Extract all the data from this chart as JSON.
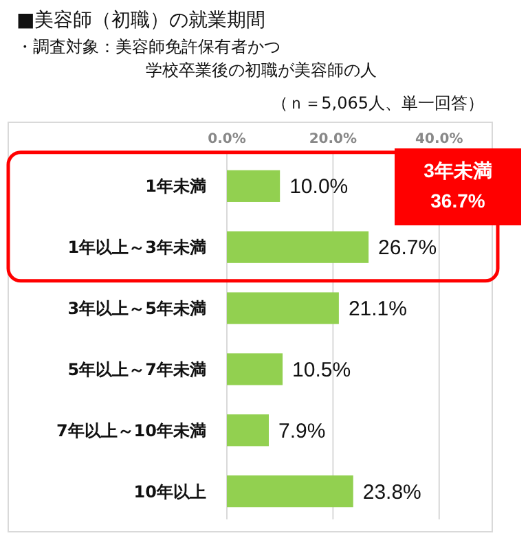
{
  "chart_data": {
    "type": "bar",
    "orientation": "horizontal",
    "title": "■美容師（初職）の就業期間",
    "subtitle": "・調査対象：美容師免許保有者かつ",
    "annotations": [
      "学校卒業後の初職が美容師の人",
      "（ｎ＝5,065人、単一回答）",
      "3年未満\n36.7%"
    ],
    "categories": [
      "1年未満",
      "1年以上～3年未満",
      "3年以上～5年未満",
      "5年以上～7年未満",
      "7年以上～10年未満",
      "10年以上"
    ],
    "values": [
      10.0,
      26.7,
      21.1,
      10.5,
      7.9,
      23.8
    ],
    "value_labels": [
      "10.0%",
      "26.7%",
      "21.1%",
      "10.5%",
      "7.9%",
      "23.8%"
    ],
    "color": "#92d050",
    "xlim": [
      0,
      50
    ],
    "xticks": [
      {
        "value": 0,
        "label": "0.0%"
      },
      {
        "value": 20,
        "label": "20.0%"
      },
      {
        "value": 40,
        "label": "40.0%"
      }
    ],
    "grid": "x"
  }
}
